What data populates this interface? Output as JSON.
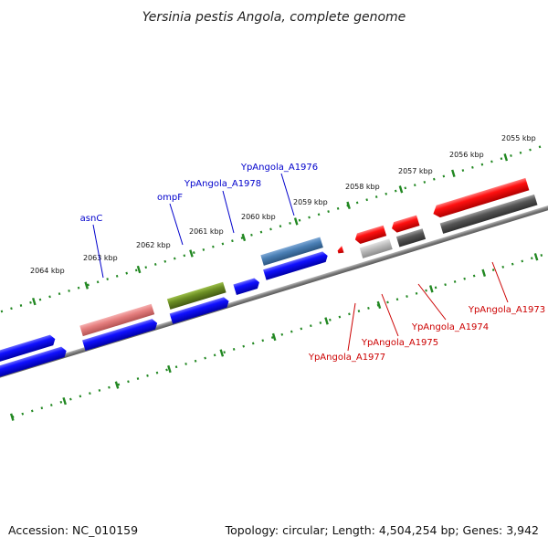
{
  "title": "Yersinia pestis Angola, complete genome",
  "footer": {
    "accession": "Accession: NC_010159",
    "topology": "Topology: circular; Length: 4,504,254 bp; Genes: 3,942"
  },
  "colors": {
    "forward_gene": "#0000ee",
    "reverse_gene": "#ee0000",
    "rna": "#6b8e23",
    "highlight_blue": "#4a7fb5",
    "highlight_pink": "#e57e7e",
    "grey_gene": "#555555",
    "light_grey_gene": "#b8b8b8",
    "tick_green": "#228822",
    "backbone": "#888888"
  },
  "kbp_labels": [
    "2064 kbp",
    "2063 kbp",
    "2062 kbp",
    "2061 kbp",
    "2060 kbp",
    "2059 kbp",
    "2058 kbp",
    "2057 kbp",
    "2056 kbp",
    "2055 kbp"
  ],
  "gene_labels": [
    {
      "text": "asnC",
      "color": "#0000cc"
    },
    {
      "text": "ompF",
      "color": "#0000cc"
    },
    {
      "text": "YpAngola_A1978",
      "color": "#0000cc"
    },
    {
      "text": "YpAngola_A1976",
      "color": "#0000cc"
    },
    {
      "text": "YpAngola_A1973",
      "color": "#cc0000"
    },
    {
      "text": "YpAngola_A1974",
      "color": "#cc0000"
    },
    {
      "text": "YpAngola_A1975",
      "color": "#cc0000"
    },
    {
      "text": "YpAngola_A1977",
      "color": "#cc0000"
    }
  ]
}
